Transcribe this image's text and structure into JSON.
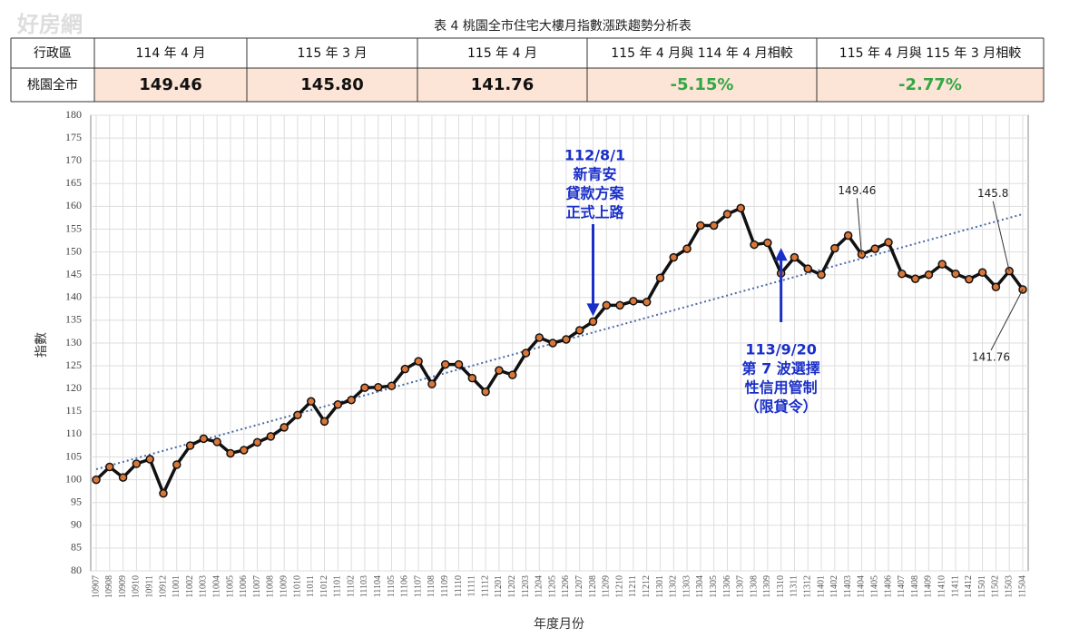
{
  "watermark": "好房網",
  "table": {
    "title": "表 4 桃園全市住宅大樓月指數漲跌趨勢分析表",
    "header": [
      "行政區",
      "114 年 4 月",
      "115 年 3 月",
      "115 年 4 月",
      "115 年 4 月與 114 年 4 月相較",
      "115 年 4 月與 115 年 3 月相較"
    ],
    "row": [
      "桃園全市",
      "149.46",
      "145.80",
      "141.76",
      "-5.15%",
      "-2.77%"
    ]
  },
  "chart_data": {
    "type": "line",
    "y_label": "指數",
    "x_label": "年度月份",
    "categories": [
      "10907",
      "10908",
      "10909",
      "10910",
      "10911",
      "10912",
      "11001",
      "11002",
      "11003",
      "11004",
      "11005",
      "11006",
      "11007",
      "11008",
      "11009",
      "11010",
      "11011",
      "11012",
      "11101",
      "11102",
      "11103",
      "11104",
      "11105",
      "11106",
      "11107",
      "11108",
      "11109",
      "11110",
      "11111",
      "11112",
      "11201",
      "11202",
      "11203",
      "11204",
      "11205",
      "11206",
      "11207",
      "11208",
      "11209",
      "11210",
      "11211",
      "11212",
      "11301",
      "11302",
      "11303",
      "11304",
      "11305",
      "11306",
      "11307",
      "11308",
      "11309",
      "11310",
      "11311",
      "11312",
      "11401",
      "11402",
      "11403",
      "11404",
      "11405",
      "11406",
      "11407",
      "11408",
      "11409",
      "11410",
      "11411",
      "11412",
      "11501",
      "11502",
      "11503",
      "11504"
    ],
    "values": [
      100,
      102.8,
      100.5,
      103.5,
      104.5,
      97,
      103.3,
      107.5,
      109,
      108.3,
      105.8,
      106.5,
      108.2,
      109.5,
      111.5,
      114.2,
      117.2,
      112.8,
      116.5,
      117.5,
      120.2,
      120.3,
      120.6,
      124.3,
      126,
      121,
      125.3,
      125.3,
      122.3,
      119.3,
      124,
      123,
      127.8,
      131.2,
      130,
      130.8,
      132.8,
      134.7,
      138.3,
      138.3,
      139.2,
      139,
      144.3,
      148.8,
      150.7,
      155.8,
      155.8,
      158.3,
      159.6,
      151.6,
      152,
      145.3,
      148.8,
      146.3,
      145,
      150.8,
      153.6,
      149.46,
      150.7,
      152.1,
      145.2,
      144.1,
      145,
      147.3,
      145.2,
      144,
      145.5,
      142.3,
      145.8,
      141.76
    ],
    "value_labels": [
      null,
      null,
      null,
      null,
      null,
      null,
      null,
      null,
      null,
      null,
      null,
      null,
      null,
      null,
      null,
      null,
      null,
      null,
      null,
      null,
      null,
      null,
      null,
      null,
      null,
      null,
      null,
      null,
      null,
      null,
      null,
      null,
      null,
      null,
      null,
      null,
      null,
      null,
      null,
      null,
      null,
      null,
      null,
      null,
      null,
      null,
      null,
      null,
      null,
      null,
      null,
      null,
      null,
      null,
      null,
      null,
      null,
      "149.46",
      null,
      null,
      null,
      null,
      null,
      null,
      null,
      null,
      null,
      null,
      "145.8",
      "141.76"
    ],
    "color": "#111111",
    "marker_color": "#d9773a",
    "trendline": {
      "start": 102.3,
      "end": 158.3,
      "color": "#4a6aa8"
    },
    "annotations": [
      {
        "x": "11208",
        "direction": "down",
        "text": [
          "112/8/1",
          "新青安",
          "貸款方案",
          "正式上路"
        ]
      },
      {
        "x": "11310",
        "direction": "up",
        "text": [
          "113/9/20",
          "第 7 波選擇",
          "性信用管制",
          "（限貸令）"
        ]
      }
    ],
    "annotation_color": "#1a2fc8",
    "ylim": [
      80,
      180
    ],
    "yticks": [
      80,
      85,
      90,
      95,
      100,
      105,
      110,
      115,
      120,
      125,
      130,
      135,
      140,
      145,
      150,
      155,
      160,
      165,
      170,
      175,
      180
    ],
    "grid": true
  }
}
